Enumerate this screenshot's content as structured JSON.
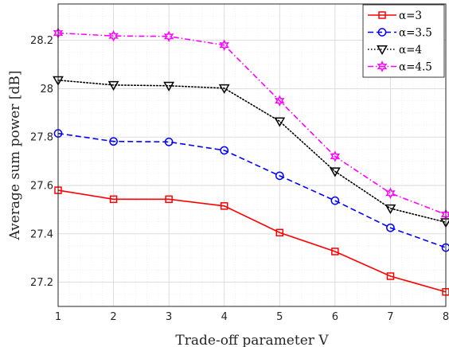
{
  "chart_data": {
    "type": "line",
    "xlabel": "Trade-off parameter V",
    "ylabel": "Average sum power [dB]",
    "x": [
      1,
      2,
      3,
      4,
      5,
      6,
      7,
      8
    ],
    "xlim": [
      1,
      8
    ],
    "ylim": [
      27.1,
      28.35
    ],
    "xticks": [
      1,
      2,
      3,
      4,
      5,
      6,
      7,
      8
    ],
    "yticks": [
      27.2,
      27.4,
      27.6,
      27.8,
      28,
      28.2
    ],
    "ytick_labels": [
      "27.2",
      "27.4",
      "27.6",
      "27.8",
      "28",
      "28.2"
    ],
    "grid": true,
    "minor_grid": true,
    "legend_position": "top-right",
    "series": [
      {
        "name": "α=3",
        "values": [
          27.58,
          27.543,
          27.543,
          27.515,
          27.405,
          27.327,
          27.225,
          27.16
        ],
        "color": "#ff0000",
        "dash": "solid",
        "marker": "square"
      },
      {
        "name": "α=3.5",
        "values": [
          27.815,
          27.782,
          27.78,
          27.745,
          27.64,
          27.537,
          27.425,
          27.343
        ],
        "color": "#0000ff",
        "dash": "dashed",
        "marker": "circle"
      },
      {
        "name": "α=4",
        "values": [
          28.035,
          28.015,
          28.012,
          28.002,
          27.865,
          27.658,
          27.505,
          27.448
        ],
        "color": "#000000",
        "dash": "dotted",
        "marker": "triangle-down"
      },
      {
        "name": "α=4.5",
        "values": [
          28.23,
          28.218,
          28.216,
          28.18,
          27.95,
          27.72,
          27.568,
          27.48
        ],
        "color": "#ff00ff",
        "dash": "dashdot",
        "marker": "hexagram"
      }
    ]
  }
}
